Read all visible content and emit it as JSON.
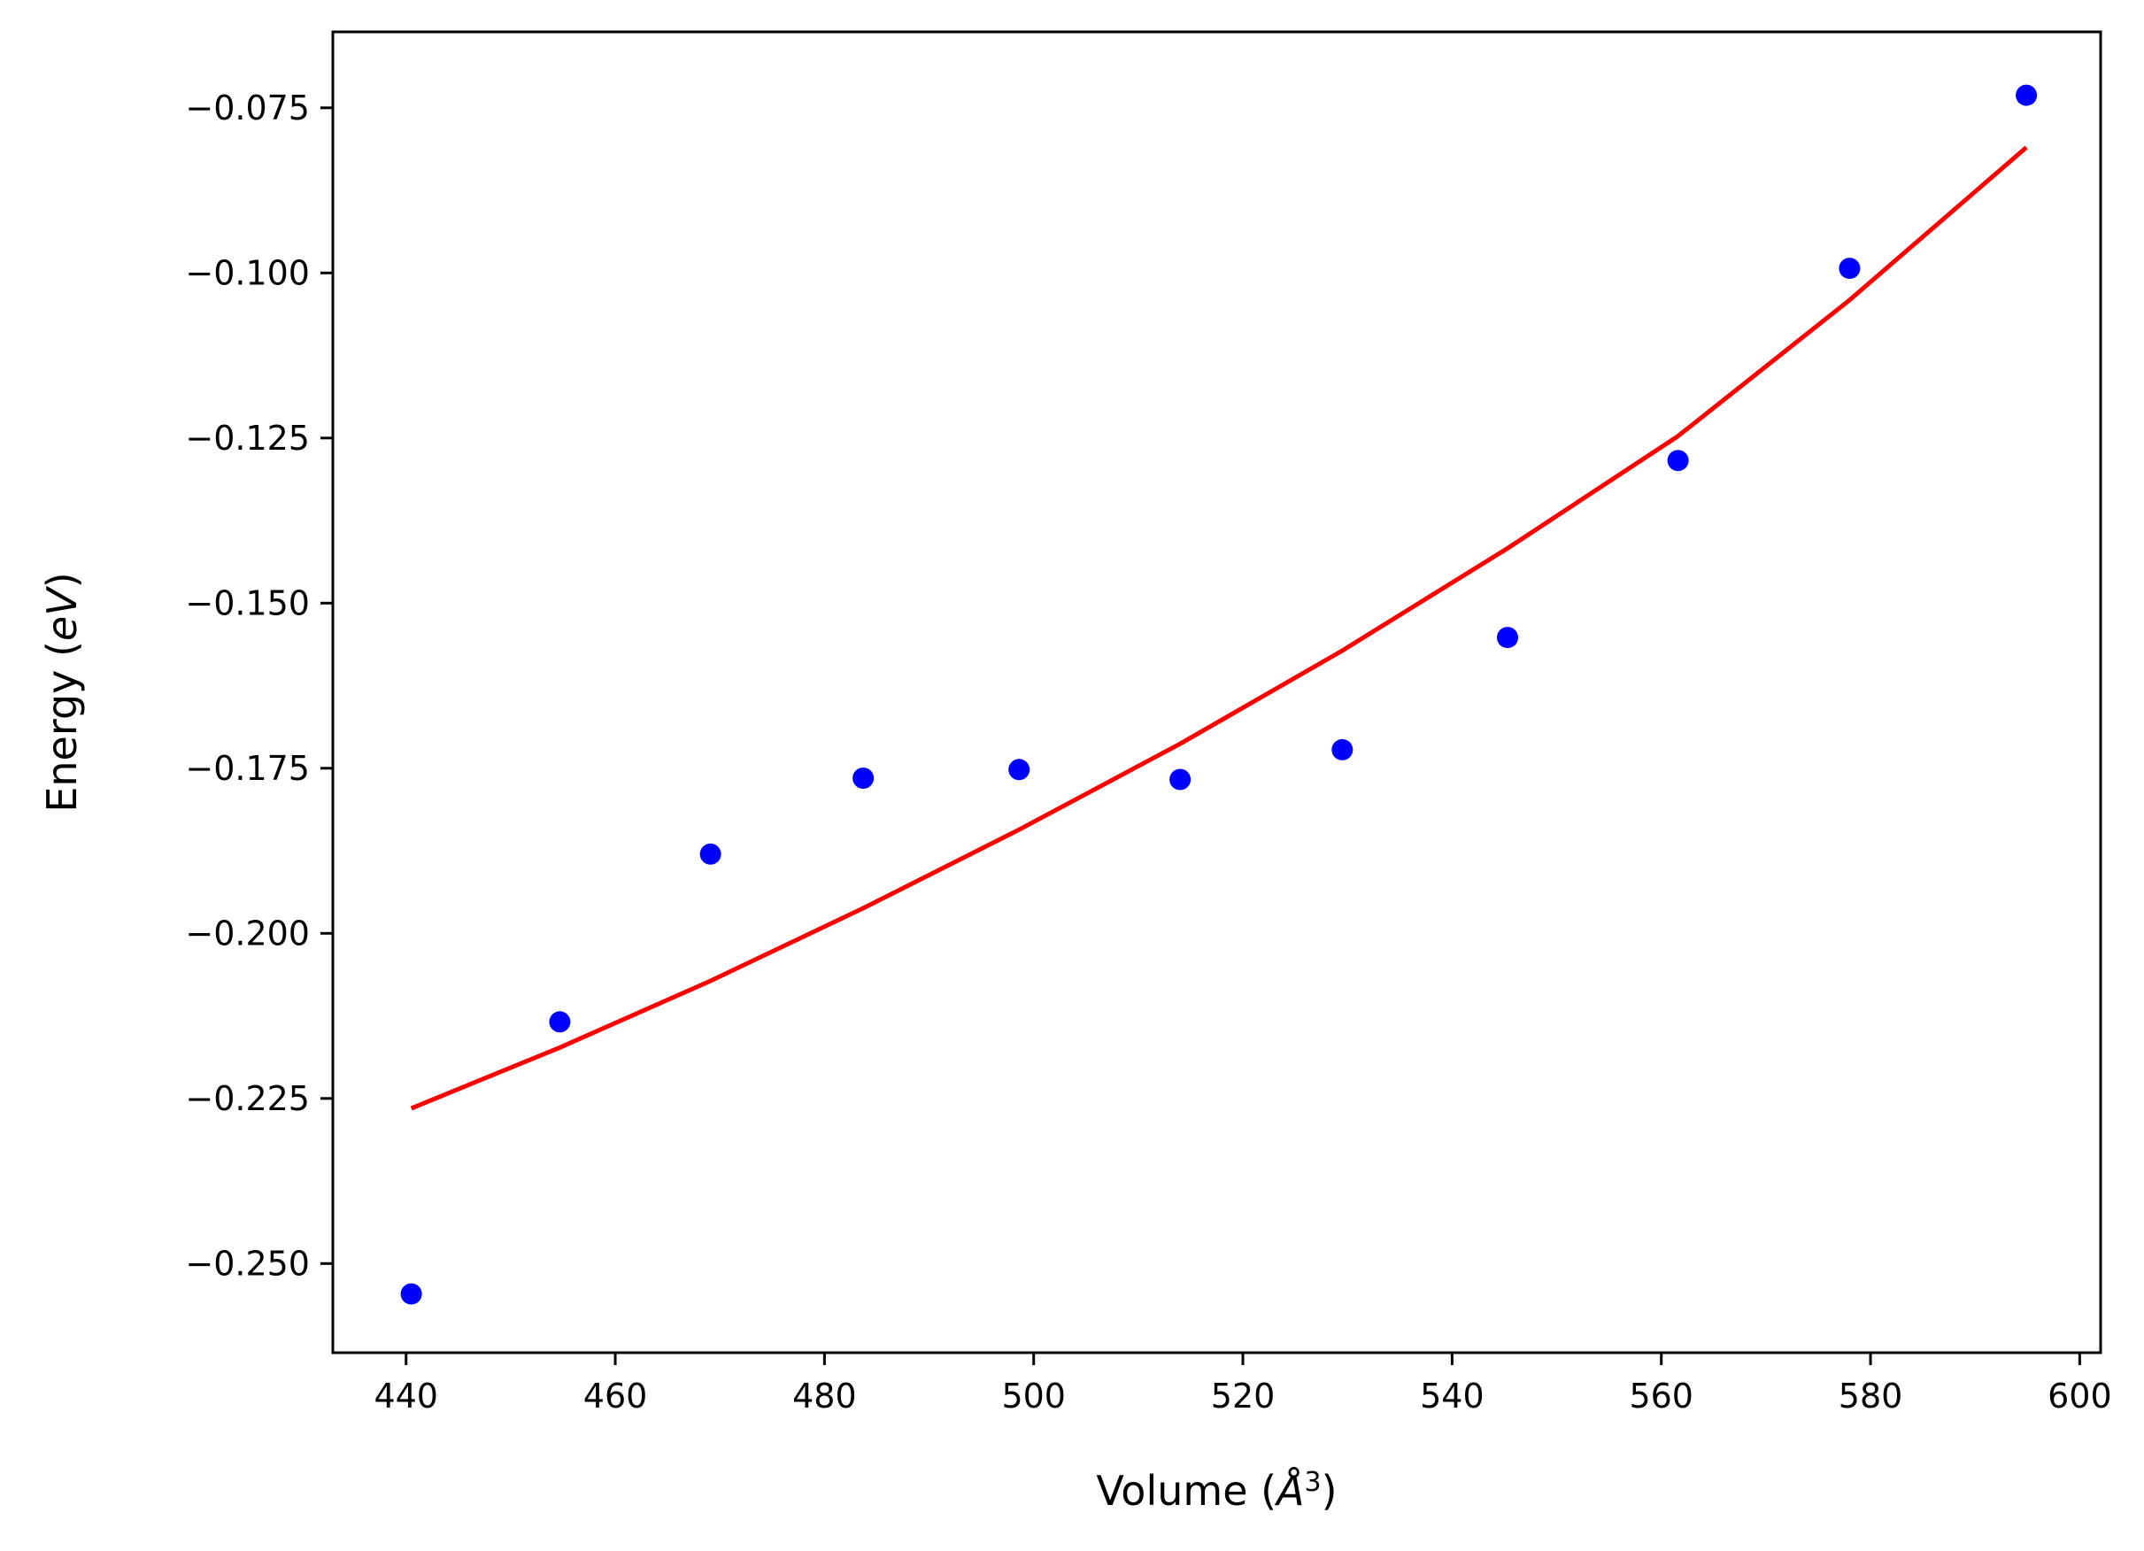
{
  "chart_data": {
    "type": "scatter",
    "title": "",
    "xlabel": "Volume",
    "xlabel_unit_base": "Å",
    "xlabel_unit_exp": "3",
    "ylabel": "Energy",
    "ylabel_unit": "eV",
    "xlim": [
      433,
      602
    ],
    "ylim": [
      -0.2635,
      -0.0635
    ],
    "xticks": [
      440,
      460,
      480,
      500,
      520,
      540,
      560,
      580,
      600
    ],
    "yticks": [
      -0.075,
      -0.1,
      -0.125,
      -0.15,
      -0.175,
      -0.2,
      -0.225,
      -0.25
    ],
    "ytick_labels": [
      "−0.075",
      "−0.100",
      "−0.125",
      "−0.150",
      "−0.175",
      "−0.200",
      "−0.225",
      "−0.250"
    ],
    "grid": false,
    "legend": "none",
    "series": [
      {
        "kind": "points",
        "color": "#0000ff",
        "x": [
          440.5,
          454.7,
          469.1,
          483.7,
          498.6,
          514.0,
          529.5,
          545.3,
          561.6,
          578.0,
          594.9
        ],
        "y": [
          -0.2546,
          -0.2134,
          -0.188,
          -0.1765,
          -0.1752,
          -0.1767,
          -0.1722,
          -0.1552,
          -0.1284,
          -0.0993,
          -0.0731
        ]
      },
      {
        "kind": "curve",
        "color": "#ff0000",
        "x": [
          440.5,
          454.7,
          469.1,
          483.7,
          498.6,
          514.0,
          529.5,
          545.3,
          561.6,
          578.0,
          594.9
        ],
        "y": [
          -0.2265,
          -0.2173,
          -0.2072,
          -0.1962,
          -0.1843,
          -0.1713,
          -0.1572,
          -0.1417,
          -0.1247,
          -0.1041,
          -0.081
        ]
      }
    ]
  }
}
